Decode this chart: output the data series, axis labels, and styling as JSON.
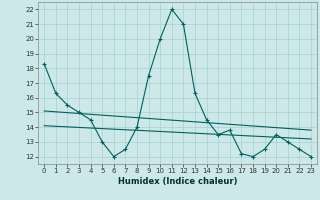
{
  "xlabel": "Humidex (Indice chaleur)",
  "ylabel": "",
  "bg_color": "#cce8e8",
  "grid_color": "#a8d0d0",
  "line_color": "#006060",
  "xlim": [
    -0.5,
    23.5
  ],
  "ylim": [
    11.5,
    22.5
  ],
  "yticks": [
    12,
    13,
    14,
    15,
    16,
    17,
    18,
    19,
    20,
    21,
    22
  ],
  "xticks": [
    0,
    1,
    2,
    3,
    4,
    5,
    6,
    7,
    8,
    9,
    10,
    11,
    12,
    13,
    14,
    15,
    16,
    17,
    18,
    19,
    20,
    21,
    22,
    23
  ],
  "series1_x": [
    0,
    1,
    2,
    3,
    4,
    5,
    6,
    7,
    8,
    9,
    10,
    11,
    12,
    13,
    14,
    15,
    16,
    17,
    18,
    19,
    20,
    21,
    22,
    23
  ],
  "series1_y": [
    18.3,
    16.3,
    15.5,
    15.0,
    14.5,
    13.0,
    12.0,
    12.5,
    14.0,
    17.5,
    20.0,
    22.0,
    21.0,
    16.3,
    14.5,
    13.5,
    13.8,
    12.2,
    12.0,
    12.5,
    13.5,
    13.0,
    12.5,
    12.0
  ],
  "trend2_x": [
    0,
    23
  ],
  "trend2_y": [
    14.1,
    13.3
  ]
}
